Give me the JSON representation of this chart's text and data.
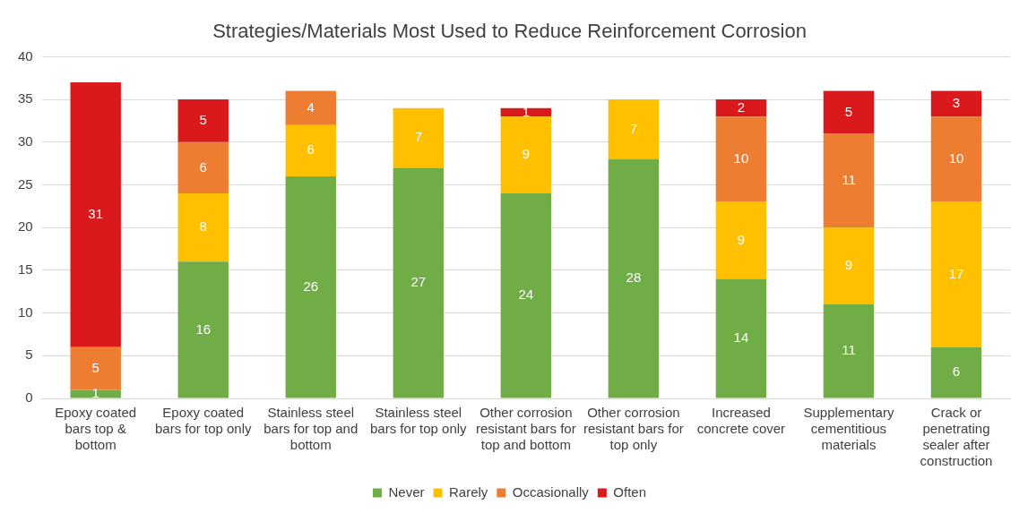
{
  "chart_data": {
    "type": "bar",
    "title": "Strategies/Materials Most Used to Reduce Reinforcement Corrosion",
    "categories": [
      "Epoxy coated bars top & bottom",
      "Epoxy coated bars for top only",
      "Stainless steel bars for top and bottom",
      "Stainless steel bars for top only",
      "Other corrosion resistant bars for top and bottom",
      "Other corrosion resistant bars for top only",
      "Increased concrete cover",
      "Supplementary cementitious materials",
      "Crack or penetrating sealer after construction"
    ],
    "series": [
      {
        "name": "Never",
        "color": "#70ad47",
        "values": [
          1,
          16,
          26,
          27,
          24,
          28,
          14,
          11,
          6
        ]
      },
      {
        "name": "Rarely",
        "color": "#ffc000",
        "values": [
          null,
          8,
          6,
          7,
          9,
          7,
          9,
          9,
          17
        ]
      },
      {
        "name": "Occasionally",
        "color": "#ed7d31",
        "values": [
          5,
          6,
          4,
          null,
          null,
          null,
          10,
          11,
          10
        ]
      },
      {
        "name": "Often",
        "color": "#d9191c",
        "values": [
          31,
          5,
          null,
          null,
          1,
          null,
          2,
          5,
          3
        ]
      }
    ],
    "stacked": true,
    "ylim": [
      0,
      40
    ],
    "yticks": [
      0,
      5,
      10,
      15,
      20,
      25,
      30,
      35,
      40
    ],
    "grid": "y",
    "legend": "bottom",
    "data_labels": true
  }
}
